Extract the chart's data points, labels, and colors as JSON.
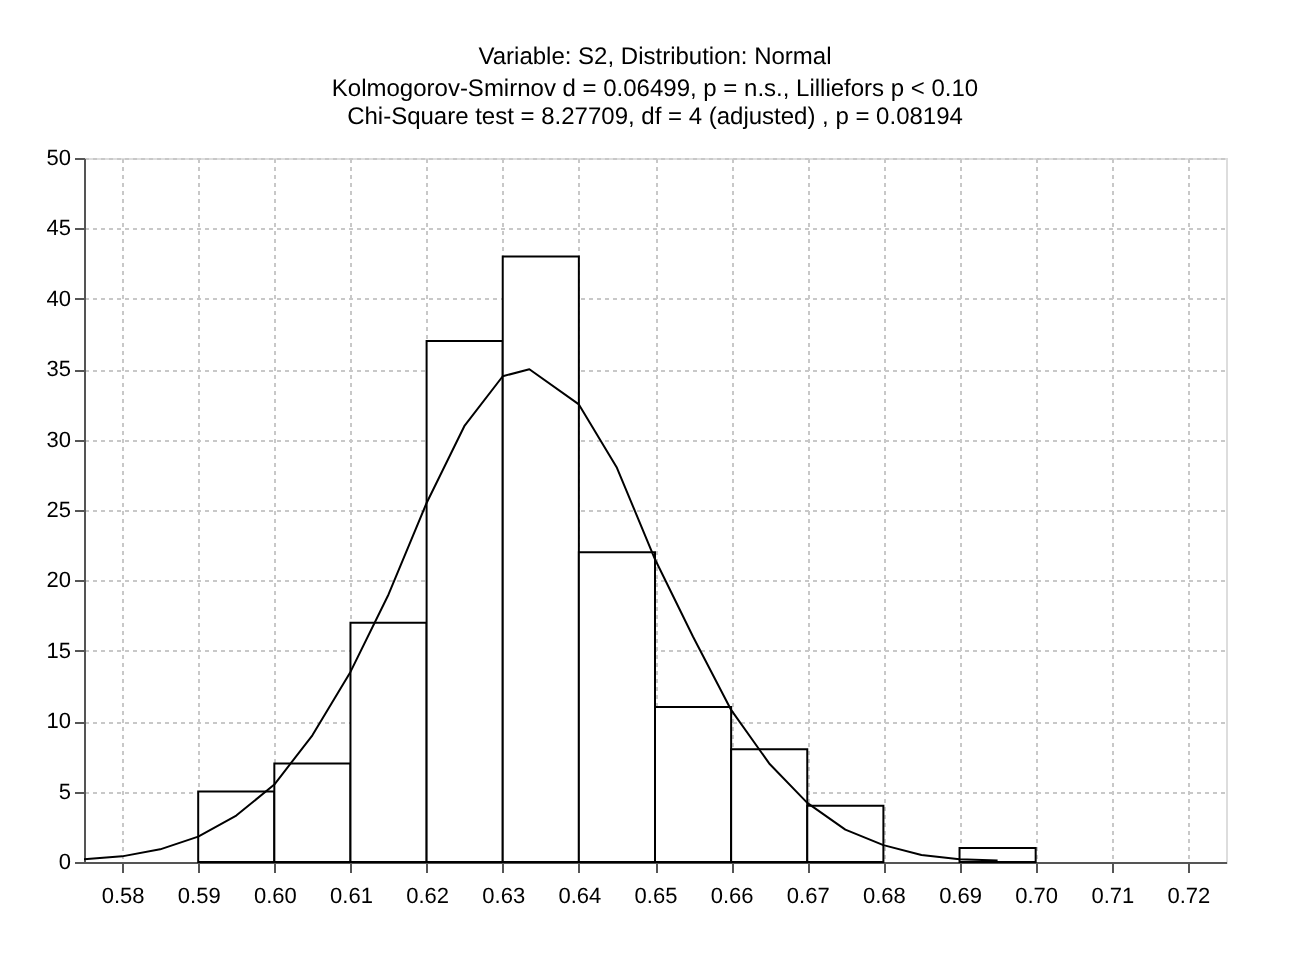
{
  "chart_data": {
    "type": "histogram",
    "title": "Variable: S2, Distribution: Normal",
    "subtitle": "Kolmogorov-Smirnov d = 0.06499, p = n.s., Lilliefors p < 0.10",
    "annotations": [
      "Chi-Square test = 8.27709, df = 4 (adjusted) , p = 0.08194"
    ],
    "bins": [
      0.59,
      0.6,
      0.61,
      0.62,
      0.63,
      0.64,
      0.65,
      0.66,
      0.67,
      0.68,
      0.69,
      0.7
    ],
    "values": [
      5,
      7,
      17,
      37,
      43,
      22,
      11,
      8,
      4,
      0,
      1
    ],
    "color": "#ffffff",
    "series": [
      {
        "type": "line",
        "color": "#000000",
        "x": [
          0.575,
          0.58,
          0.585,
          0.59,
          0.595,
          0.6,
          0.605,
          0.61,
          0.615,
          0.62,
          0.625,
          0.63,
          0.6335,
          0.64,
          0.645,
          0.65,
          0.655,
          0.66,
          0.665,
          0.67,
          0.675,
          0.68,
          0.685,
          0.69,
          0.695
        ],
        "values": [
          0.2,
          0.4,
          0.9,
          1.8,
          3.3,
          5.5,
          9,
          13.5,
          19,
          25.5,
          31,
          34.5,
          35,
          32.5,
          28,
          21.5,
          16,
          10.8,
          7,
          4.2,
          2.3,
          1.2,
          0.5,
          0.2,
          0.1
        ]
      }
    ],
    "xlim": [
      0.575,
      0.725
    ],
    "xticks": [
      0.58,
      0.59,
      {
        "value": 0.6,
        "label": "0.60"
      },
      0.61,
      0.62,
      0.63,
      0.64,
      0.65,
      0.66,
      0.67,
      0.68,
      0.69,
      {
        "value": 0.7,
        "label": "0.70"
      },
      0.71,
      0.72
    ],
    "ylim": [
      0,
      50
    ],
    "yticks": [
      0,
      5,
      10,
      15,
      20,
      25,
      30,
      35,
      40,
      45,
      50
    ],
    "grid": true
  }
}
